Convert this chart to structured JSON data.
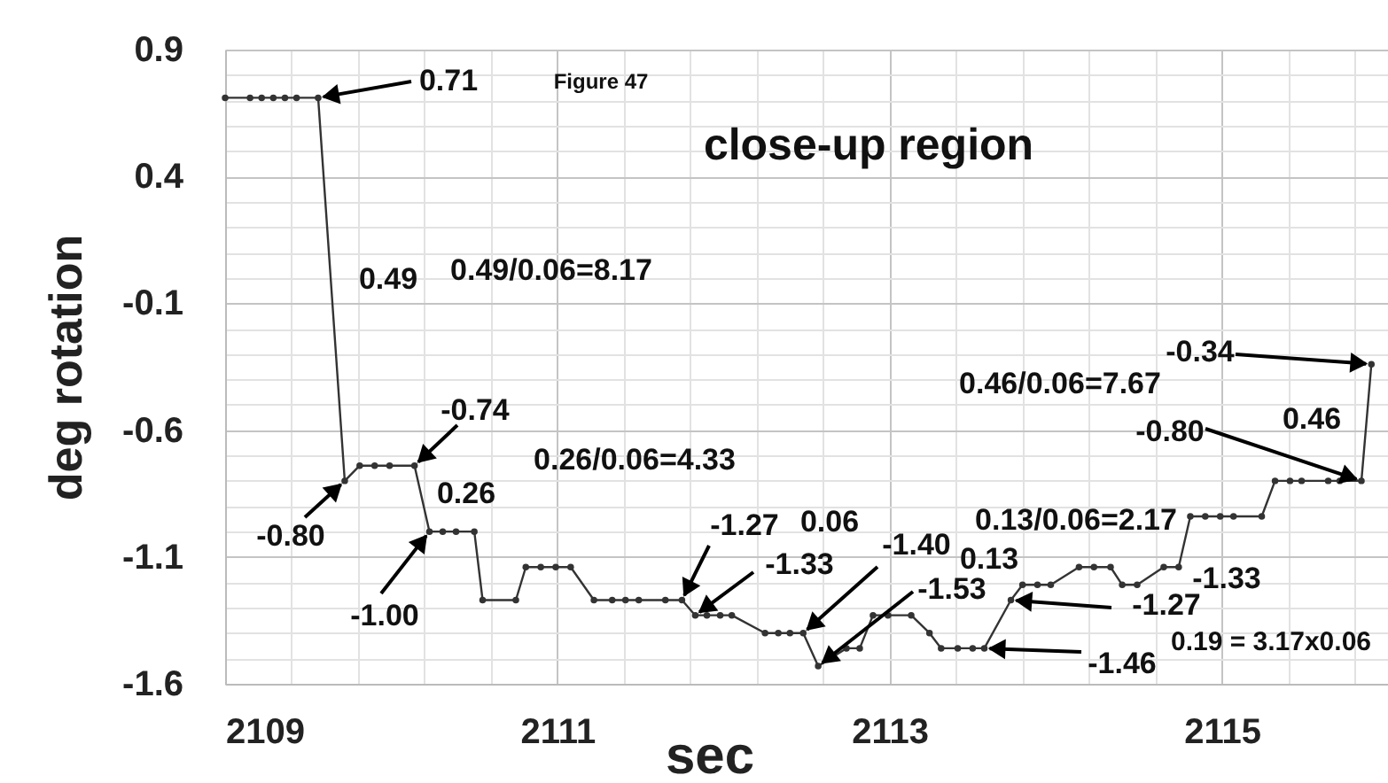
{
  "chart_data": {
    "type": "line",
    "xlabel": "sec",
    "ylabel": "deg rotation",
    "x": [
      2109.0,
      2109.15,
      2109.22,
      2109.29,
      2109.36,
      2109.43,
      2109.56,
      2109.72,
      2109.81,
      2109.9,
      2109.99,
      2110.14,
      2110.23,
      2110.31,
      2110.39,
      2110.5,
      2110.55,
      2110.75,
      2110.81,
      2110.9,
      2110.99,
      2111.08,
      2111.22,
      2111.33,
      2111.41,
      2111.49,
      2111.65,
      2111.75,
      2111.83,
      2111.9,
      2111.98,
      2112.05,
      2112.25,
      2112.33,
      2112.4,
      2112.48,
      2112.57,
      2112.74,
      2112.82,
      2112.9,
      2112.99,
      2113.13,
      2113.24,
      2113.31,
      2113.41,
      2113.5,
      2113.57,
      2113.73,
      2113.8,
      2113.89,
      2113.97,
      2114.14,
      2114.23,
      2114.33,
      2114.4,
      2114.49,
      2114.65,
      2114.74,
      2114.81,
      2114.9,
      2114.99,
      2115.07,
      2115.24,
      2115.32,
      2115.41,
      2115.48,
      2115.64,
      2115.71,
      2115.84,
      2115.9
    ],
    "series": [
      {
        "color": "#333333",
        "values": [
          0.71,
          0.71,
          0.71,
          0.71,
          0.71,
          0.71,
          0.71,
          -0.8,
          -0.74,
          -0.74,
          -0.74,
          -0.74,
          -1.0,
          -1.0,
          -1.0,
          -1.0,
          -1.27,
          -1.27,
          -1.14,
          -1.14,
          -1.14,
          -1.14,
          -1.27,
          -1.27,
          -1.27,
          -1.27,
          -1.27,
          -1.27,
          -1.33,
          -1.33,
          -1.33,
          -1.33,
          -1.4,
          -1.4,
          -1.4,
          -1.4,
          -1.53,
          -1.46,
          -1.46,
          -1.33,
          -1.33,
          -1.33,
          -1.4,
          -1.46,
          -1.46,
          -1.46,
          -1.46,
          -1.27,
          -1.21,
          -1.21,
          -1.21,
          -1.14,
          -1.14,
          -1.14,
          -1.21,
          -1.21,
          -1.14,
          -1.14,
          -0.94,
          -0.94,
          -0.94,
          -0.94,
          -0.94,
          -0.8,
          -0.8,
          -0.8,
          -0.8,
          -0.8,
          -0.8,
          -0.34
        ]
      }
    ],
    "xlim": [
      2109,
      2116
    ],
    "xticks": [
      2109,
      {
        "value": 2109.4,
        "label": null
      },
      {
        "value": 2109.8,
        "label": null
      },
      {
        "value": 2110.2,
        "label": null
      },
      {
        "value": 2110.6,
        "label": null
      },
      2111,
      {
        "value": 2111.4,
        "label": null
      },
      {
        "value": 2111.8,
        "label": null
      },
      {
        "value": 2112.2,
        "label": null
      },
      {
        "value": 2112.6,
        "label": null
      },
      2113,
      {
        "value": 2113.4,
        "label": null
      },
      {
        "value": 2113.8,
        "label": null
      },
      {
        "value": 2114.2,
        "label": null
      },
      {
        "value": 2114.6,
        "label": null
      },
      2115,
      {
        "value": 2115.4,
        "label": null
      },
      {
        "value": 2115.8,
        "label": null
      }
    ],
    "ylim": [
      -1.6,
      0.9
    ],
    "yticks": [
      0.9,
      {
        "value": 0.8,
        "label": null
      },
      {
        "value": 0.7,
        "label": null
      },
      {
        "value": 0.6,
        "label": null
      },
      {
        "value": 0.5,
        "label": null
      },
      0.4,
      {
        "value": 0.3,
        "label": null
      },
      {
        "value": 0.2,
        "label": null
      },
      {
        "value": 0.1,
        "label": null
      },
      {
        "value": 0.0,
        "label": null
      },
      -0.1,
      {
        "value": -0.2,
        "label": null
      },
      {
        "value": -0.3,
        "label": null
      },
      {
        "value": -0.4,
        "label": null
      },
      {
        "value": -0.5,
        "label": null
      },
      -0.6,
      {
        "value": -0.7,
        "label": null
      },
      {
        "value": -0.8,
        "label": null
      },
      {
        "value": -0.9,
        "label": null
      },
      {
        "value": -1.0,
        "label": null
      },
      -1.1,
      {
        "value": -1.2,
        "label": null
      },
      {
        "value": -1.3,
        "label": null
      },
      {
        "value": -1.4,
        "label": null
      },
      {
        "value": -1.5,
        "label": null
      },
      -1.6
    ],
    "grid": true,
    "marker": "circle",
    "line_style": "solid",
    "annotations": [
      "Figure 47",
      {
        "text": "0.71",
        "x": 2109.56,
        "y": 0.71
      },
      "close-up region",
      "0.49",
      "0.49/0.06=8.17",
      {
        "text": "-0.74",
        "x": 2110.14,
        "y": -0.74
      },
      "0.26",
      "0.26/0.06=4.33",
      {
        "text": "-0.80",
        "x": 2109.72,
        "y": -0.8
      },
      {
        "text": "-1.00",
        "x": 2110.23,
        "y": -1.0
      },
      {
        "text": "-1.27",
        "x": 2111.75,
        "y": -1.27
      },
      "0.06",
      {
        "text": "-1.33",
        "x": 2111.83,
        "y": -1.33
      },
      {
        "text": "-1.40",
        "x": 2112.48,
        "y": -1.4
      },
      {
        "text": "-1.53",
        "x": 2112.57,
        "y": -1.53
      },
      "0.13",
      {
        "text": "-1.27",
        "x": 2113.73,
        "y": -1.27
      },
      {
        "text": "-1.46",
        "x": 2113.57,
        "y": -1.46
      },
      "0.13/0.06=2.17",
      "-1.33",
      "0.46/0.06=7.67",
      {
        "text": "-0.34",
        "x": 2115.9,
        "y": -0.34
      },
      {
        "text": "-0.80",
        "x": 2115.84,
        "y": -0.8
      },
      "0.46",
      "0.19 = 3.17x0.06"
    ]
  }
}
